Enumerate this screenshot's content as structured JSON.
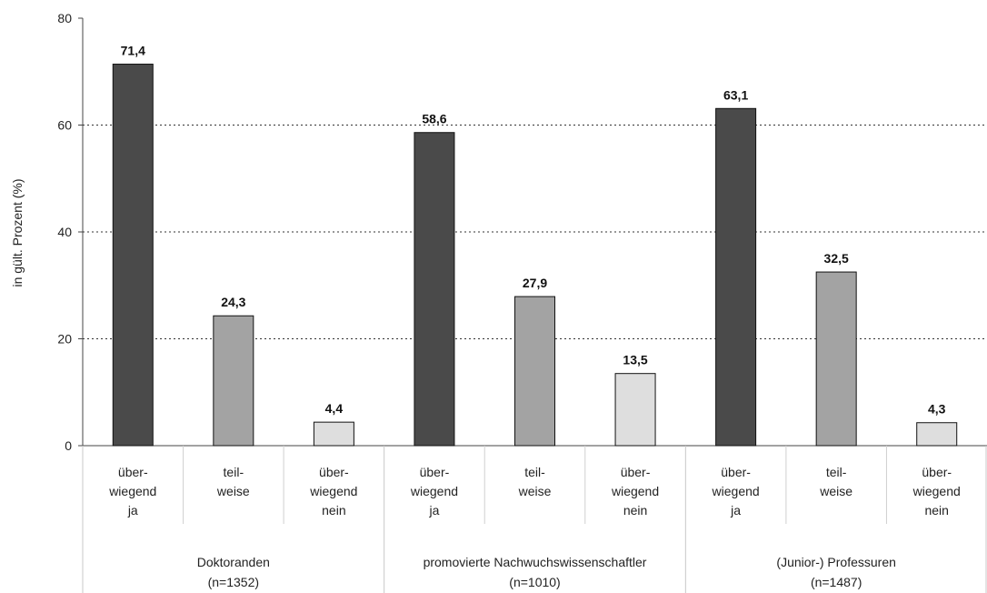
{
  "chart_data": {
    "type": "bar",
    "ylabel": "in gült. Prozent (%)",
    "ylim": [
      0,
      80
    ],
    "yticks": [
      "0",
      "20",
      "40",
      "60",
      "80"
    ],
    "grid": "horizontal dotted",
    "bar_colors": {
      "ja": "#4a4a4a",
      "teilweise": "#a3a3a3",
      "nein": "#dedede"
    },
    "groups": [
      {
        "label_line1": "Doktoranden",
        "label_line2": "(n=1352)",
        "bars": [
          {
            "category": [
              "über-",
              "wiegend",
              "ja"
            ],
            "value": 71.4,
            "value_label": "71,4",
            "kind": "ja"
          },
          {
            "category": [
              "teil-",
              "weise"
            ],
            "value": 24.3,
            "value_label": "24,3",
            "kind": "teilweise"
          },
          {
            "category": [
              "über-",
              "wiegend",
              "nein"
            ],
            "value": 4.4,
            "value_label": "4,4",
            "kind": "nein"
          }
        ]
      },
      {
        "label_line1": "promovierte Nachwuchswissenschaftler",
        "label_line2": "(n=1010)",
        "bars": [
          {
            "category": [
              "über-",
              "wiegend",
              "ja"
            ],
            "value": 58.6,
            "value_label": "58,6",
            "kind": "ja"
          },
          {
            "category": [
              "teil-",
              "weise"
            ],
            "value": 27.9,
            "value_label": "27,9",
            "kind": "teilweise"
          },
          {
            "category": [
              "über-",
              "wiegend",
              "nein"
            ],
            "value": 13.5,
            "value_label": "13,5",
            "kind": "nein"
          }
        ]
      },
      {
        "label_line1": "(Junior-) Professuren",
        "label_line2": "(n=1487)",
        "bars": [
          {
            "category": [
              "über-",
              "wiegend",
              "ja"
            ],
            "value": 63.1,
            "value_label": "63,1",
            "kind": "ja"
          },
          {
            "category": [
              "teil-",
              "weise"
            ],
            "value": 32.5,
            "value_label": "32,5",
            "kind": "teilweise"
          },
          {
            "category": [
              "über-",
              "wiegend",
              "nein"
            ],
            "value": 4.3,
            "value_label": "4,3",
            "kind": "nein"
          }
        ]
      }
    ]
  }
}
